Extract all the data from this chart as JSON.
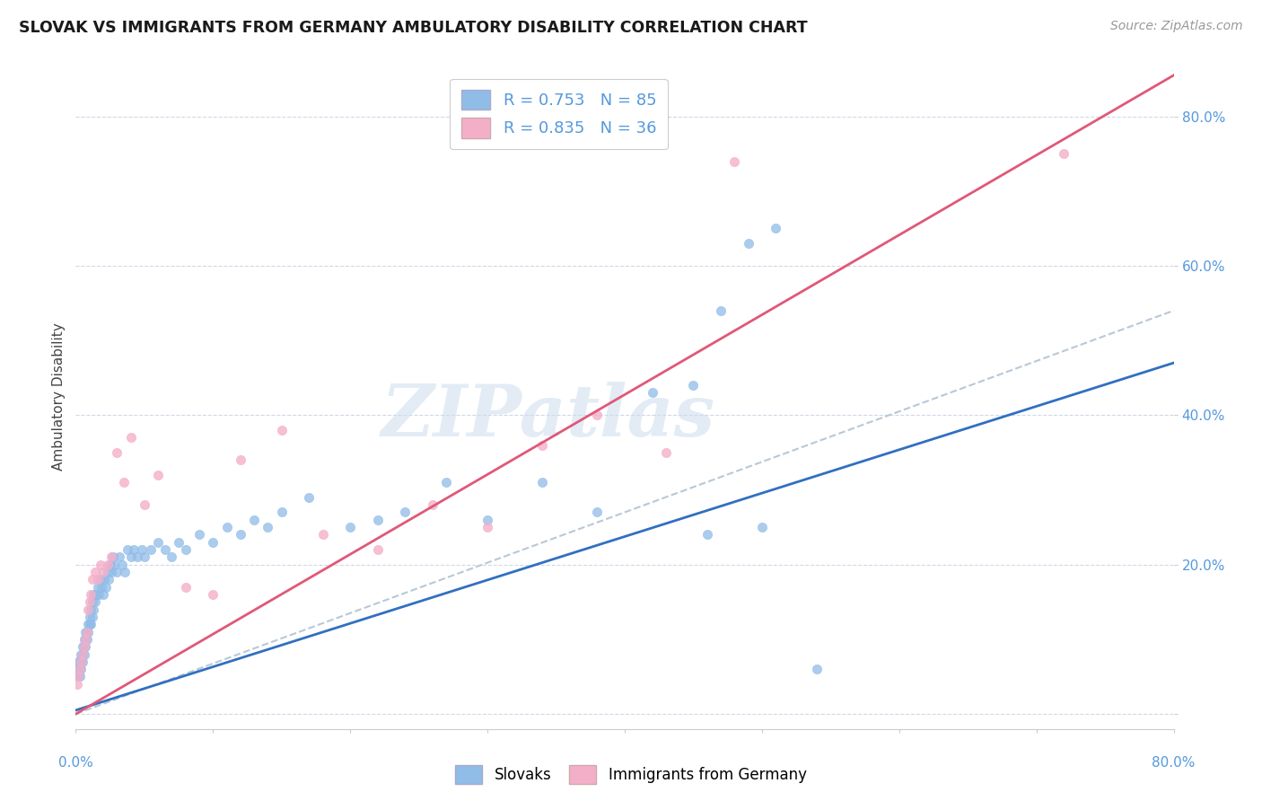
{
  "title": "SLOVAK VS IMMIGRANTS FROM GERMANY AMBULATORY DISABILITY CORRELATION CHART",
  "source": "Source: ZipAtlas.com",
  "ylabel": "Ambulatory Disability",
  "ytick_labels": [
    "",
    "20.0%",
    "40.0%",
    "60.0%",
    "80.0%"
  ],
  "ytick_positions": [
    0.0,
    0.2,
    0.4,
    0.6,
    0.8
  ],
  "xmin": 0.0,
  "xmax": 0.8,
  "ymin": -0.02,
  "ymax": 0.87,
  "watermark_text": "ZIPatlas",
  "slovaks_color": "#90bce8",
  "immigrants_color": "#f4afc8",
  "line_slovak_color": "#3070c0",
  "line_immigrant_color": "#e05878",
  "dashed_line_color": "#b8c8d8",
  "slovak_line_x": [
    0.0,
    0.8
  ],
  "slovak_line_y": [
    0.005,
    0.47
  ],
  "immigrant_line_x": [
    0.0,
    0.8
  ],
  "immigrant_line_y": [
    0.0,
    0.855
  ],
  "dashed_line_x": [
    0.0,
    0.8
  ],
  "dashed_line_y": [
    0.0,
    0.54
  ],
  "slovaks_x": [
    0.001,
    0.001,
    0.002,
    0.002,
    0.003,
    0.003,
    0.003,
    0.004,
    0.004,
    0.004,
    0.005,
    0.005,
    0.005,
    0.006,
    0.006,
    0.006,
    0.007,
    0.007,
    0.007,
    0.008,
    0.008,
    0.009,
    0.009,
    0.01,
    0.01,
    0.011,
    0.011,
    0.012,
    0.012,
    0.013,
    0.013,
    0.014,
    0.015,
    0.016,
    0.017,
    0.018,
    0.019,
    0.02,
    0.021,
    0.022,
    0.023,
    0.024,
    0.025,
    0.026,
    0.027,
    0.028,
    0.03,
    0.032,
    0.034,
    0.036,
    0.038,
    0.04,
    0.042,
    0.045,
    0.048,
    0.05,
    0.055,
    0.06,
    0.065,
    0.07,
    0.075,
    0.08,
    0.09,
    0.1,
    0.11,
    0.12,
    0.13,
    0.14,
    0.15,
    0.17,
    0.2,
    0.22,
    0.24,
    0.27,
    0.3,
    0.34,
    0.38,
    0.42,
    0.46,
    0.5,
    0.54,
    0.45,
    0.47,
    0.49,
    0.51
  ],
  "slovaks_y": [
    0.05,
    0.06,
    0.05,
    0.07,
    0.05,
    0.06,
    0.07,
    0.06,
    0.07,
    0.08,
    0.07,
    0.08,
    0.09,
    0.08,
    0.09,
    0.1,
    0.09,
    0.1,
    0.11,
    0.1,
    0.11,
    0.11,
    0.12,
    0.12,
    0.13,
    0.12,
    0.14,
    0.13,
    0.15,
    0.14,
    0.16,
    0.15,
    0.16,
    0.17,
    0.16,
    0.18,
    0.17,
    0.16,
    0.18,
    0.17,
    0.19,
    0.18,
    0.2,
    0.19,
    0.21,
    0.2,
    0.19,
    0.21,
    0.2,
    0.19,
    0.22,
    0.21,
    0.22,
    0.21,
    0.22,
    0.21,
    0.22,
    0.23,
    0.22,
    0.21,
    0.23,
    0.22,
    0.24,
    0.23,
    0.25,
    0.24,
    0.26,
    0.25,
    0.27,
    0.29,
    0.25,
    0.26,
    0.27,
    0.31,
    0.26,
    0.31,
    0.27,
    0.43,
    0.24,
    0.25,
    0.06,
    0.44,
    0.54,
    0.63,
    0.65
  ],
  "immigrants_x": [
    0.001,
    0.002,
    0.003,
    0.004,
    0.005,
    0.006,
    0.007,
    0.008,
    0.009,
    0.01,
    0.011,
    0.012,
    0.014,
    0.016,
    0.018,
    0.02,
    0.023,
    0.026,
    0.03,
    0.035,
    0.04,
    0.05,
    0.06,
    0.08,
    0.1,
    0.12,
    0.15,
    0.18,
    0.22,
    0.26,
    0.3,
    0.34,
    0.38,
    0.43,
    0.48,
    0.72
  ],
  "immigrants_y": [
    0.04,
    0.05,
    0.06,
    0.07,
    0.08,
    0.09,
    0.1,
    0.11,
    0.14,
    0.15,
    0.16,
    0.18,
    0.19,
    0.18,
    0.2,
    0.19,
    0.2,
    0.21,
    0.35,
    0.31,
    0.37,
    0.28,
    0.32,
    0.17,
    0.16,
    0.34,
    0.38,
    0.24,
    0.22,
    0.28,
    0.25,
    0.36,
    0.4,
    0.35,
    0.74,
    0.75
  ]
}
